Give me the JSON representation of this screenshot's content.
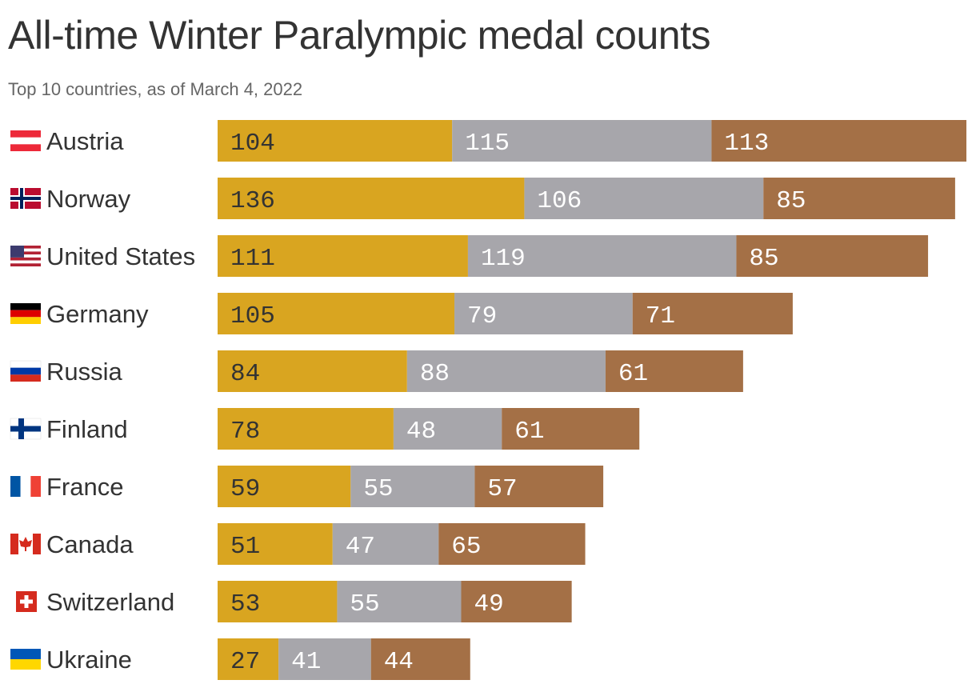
{
  "colors": {
    "gold": "#D9A520",
    "silver": "#A7A6AB",
    "bronze": "#A47046",
    "gold_text": "#333333",
    "silver_text": "#FFFFFF",
    "bronze_text": "#FFFFFF"
  },
  "chart_data": {
    "type": "bar",
    "orientation": "horizontal",
    "stacked": true,
    "title": "All-time Winter Paralympic medal counts",
    "subtitle": "Top 10 countries, as of March 4, 2022",
    "categories": [
      "Austria",
      "Norway",
      "United States",
      "Germany",
      "Russia",
      "Finland",
      "France",
      "Canada",
      "Switzerland",
      "Ukraine"
    ],
    "flags": [
      "austria-flag-icon",
      "norway-flag-icon",
      "united-states-flag-icon",
      "germany-flag-icon",
      "russia-flag-icon",
      "finland-flag-icon",
      "france-flag-icon",
      "canada-flag-icon",
      "switzerland-flag-icon",
      "ukraine-flag-icon"
    ],
    "series": [
      {
        "key": "gold",
        "values": [
          104,
          136,
          111,
          105,
          84,
          78,
          59,
          51,
          53,
          27
        ]
      },
      {
        "key": "silver",
        "values": [
          115,
          106,
          119,
          79,
          88,
          48,
          55,
          47,
          55,
          41
        ]
      },
      {
        "key": "bronze",
        "values": [
          113,
          85,
          85,
          71,
          61,
          61,
          57,
          65,
          49,
          44
        ]
      }
    ],
    "xlim": [
      0,
      332
    ],
    "grid": false,
    "legend": "none"
  }
}
